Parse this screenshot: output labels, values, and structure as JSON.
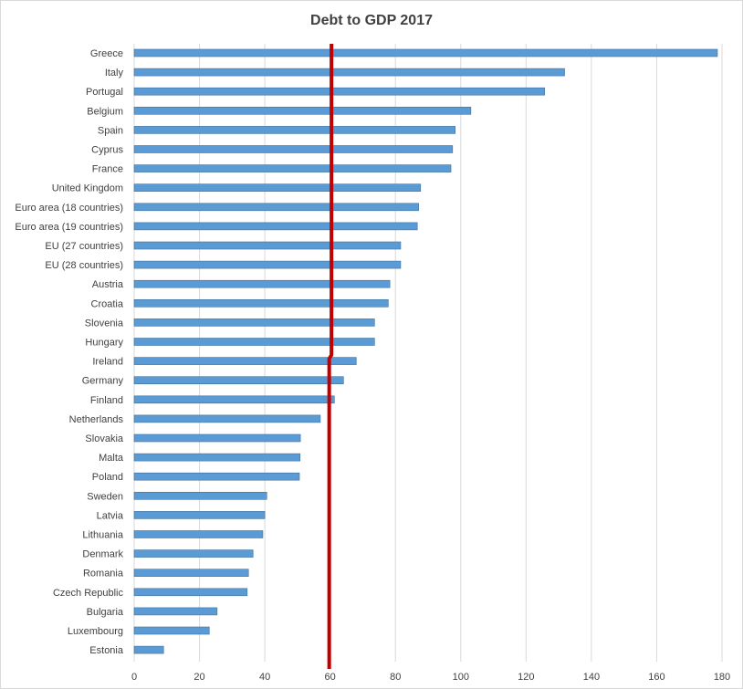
{
  "chart_data": {
    "type": "bar",
    "orientation": "horizontal",
    "title": "Debt to GDP 2017",
    "xlabel": "",
    "ylabel": "",
    "categories": [
      "Greece",
      "Italy",
      "Portugal",
      "Belgium",
      "Spain",
      "Cyprus",
      "France",
      "United Kingdom",
      "Euro area (18 countries)",
      "Euro area (19 countries)",
      "EU (27 countries)",
      "EU (28 countries)",
      "Austria",
      "Croatia",
      "Slovenia",
      "Hungary",
      "Ireland",
      "Germany",
      "Finland",
      "Netherlands",
      "Slovakia",
      "Malta",
      "Poland",
      "Sweden",
      "Latvia",
      "Lithuania",
      "Denmark",
      "Romania",
      "Czech Republic",
      "Bulgaria",
      "Luxembourg",
      "Estonia"
    ],
    "values": [
      178.6,
      131.8,
      125.7,
      103.1,
      98.3,
      97.5,
      97.0,
      87.7,
      87.1,
      86.7,
      81.6,
      81.6,
      78.3,
      77.8,
      73.6,
      73.6,
      68.0,
      64.1,
      61.3,
      57.0,
      50.9,
      50.8,
      50.6,
      40.6,
      40.0,
      39.4,
      36.4,
      35.0,
      34.6,
      25.4,
      23.0,
      9.0
    ],
    "xlim": [
      0,
      180
    ],
    "xticks": [
      "0",
      "20",
      "40",
      "60",
      "80",
      "100",
      "120",
      "140",
      "160",
      "180"
    ],
    "grid": "vertical",
    "legend": "none",
    "reference_line": {
      "value": 60,
      "color": "#c00000"
    },
    "colors": {
      "bar_fill": "#5b9bd5",
      "bar_stroke": "#41719c",
      "grid": "#d9d9d9",
      "text": "#404040"
    }
  }
}
